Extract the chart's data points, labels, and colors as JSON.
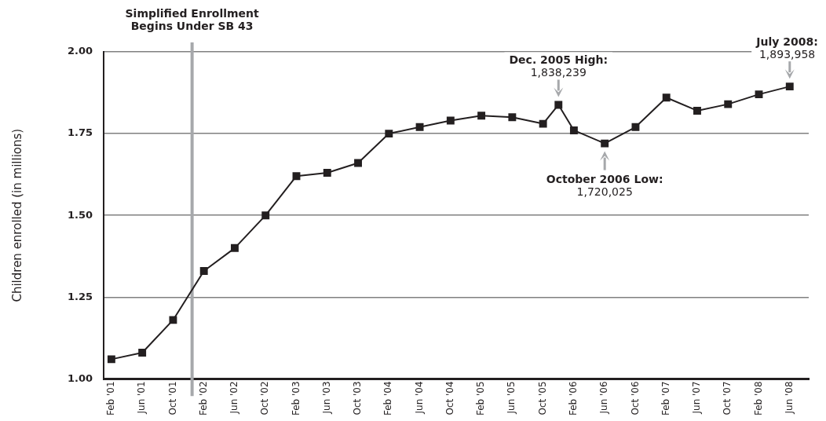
{
  "chart_data": {
    "type": "line",
    "ylabel": "Children enrolled (in millions)",
    "x": [
      "2001-02",
      "2001-06",
      "2001-10",
      "2002-02",
      "2002-06",
      "2002-10",
      "2003-02",
      "2003-06",
      "2003-10",
      "2004-02",
      "2004-06",
      "2004-10",
      "2005-02",
      "2005-06",
      "2005-10",
      "2005-12",
      "2006-02",
      "2006-06",
      "2006-10",
      "2007-02",
      "2007-06",
      "2007-10",
      "2008-02",
      "2008-06"
    ],
    "series": [
      {
        "color": "#231f20",
        "values": [
          1.06,
          1.08,
          1.18,
          1.33,
          1.4,
          1.5,
          1.62,
          1.63,
          1.66,
          1.75,
          1.77,
          1.79,
          1.805,
          1.8,
          1.78,
          1.838,
          1.76,
          1.72,
          1.77,
          1.86,
          1.82,
          1.84,
          1.87,
          1.894
        ]
      }
    ],
    "xlim": [
      "2001-01",
      "2008-08-15"
    ],
    "xticks": [
      {
        "value": "2001-02",
        "label": "Feb '01"
      },
      {
        "value": "2001-06",
        "label": "Jun '01"
      },
      {
        "value": "2001-10",
        "label": "Oct '01"
      },
      {
        "value": "2002-02",
        "label": "Feb '02"
      },
      {
        "value": "2002-06",
        "label": "Jun '02"
      },
      {
        "value": "2002-10",
        "label": "Oct '02"
      },
      {
        "value": "2003-02",
        "label": "Feb '03"
      },
      {
        "value": "2003-06",
        "label": "Jun '03"
      },
      {
        "value": "2003-10",
        "label": "Oct '03"
      },
      {
        "value": "2004-02",
        "label": "Feb '04"
      },
      {
        "value": "2004-06",
        "label": "Jun '04"
      },
      {
        "value": "2004-10",
        "label": "Oct '04"
      },
      {
        "value": "2005-02",
        "label": "Feb '05"
      },
      {
        "value": "2005-06",
        "label": "Jun '05"
      },
      {
        "value": "2005-10",
        "label": "Oct '05"
      },
      {
        "value": "2006-02",
        "label": "Feb '06"
      },
      {
        "value": "2006-06",
        "label": "Jun '06"
      },
      {
        "value": "2006-10",
        "label": "Oct '06"
      },
      {
        "value": "2007-02",
        "label": "Feb '07"
      },
      {
        "value": "2007-06",
        "label": "Jun '07"
      },
      {
        "value": "2007-10",
        "label": "Oct '07"
      },
      {
        "value": "2008-02",
        "label": "Feb '08"
      },
      {
        "value": "2008-06",
        "label": "Jun '08"
      }
    ],
    "ylim": [
      1,
      2
    ],
    "yticks": [
      {
        "value": 1,
        "label": "1.00"
      },
      {
        "value": 1.25,
        "label": "1.25"
      },
      {
        "value": 1.5,
        "label": "1.50"
      },
      {
        "value": 1.75,
        "label": "1.75"
      },
      {
        "value": 2,
        "label": "2.00"
      }
    ],
    "grid": "y",
    "marker": "square",
    "line_style": "solid",
    "legend": false,
    "ref_lines": [
      {
        "axis": "x",
        "value": "2001-12-15",
        "label": "Simplified Enrollment\nBegins Under SB 43",
        "color": "#a6a8ab"
      }
    ],
    "annotations": [
      {
        "text": "Dec. 2005 High:\n1,838,239",
        "x": "2005-12",
        "y": 1.838
      },
      {
        "text": "October 2006 Low:\n1,720,025",
        "x": "2006-06",
        "y": 1.72
      },
      {
        "text": "July 2008:\n1,893,958",
        "x": "2008-06",
        "y": 1.894
      }
    ]
  }
}
